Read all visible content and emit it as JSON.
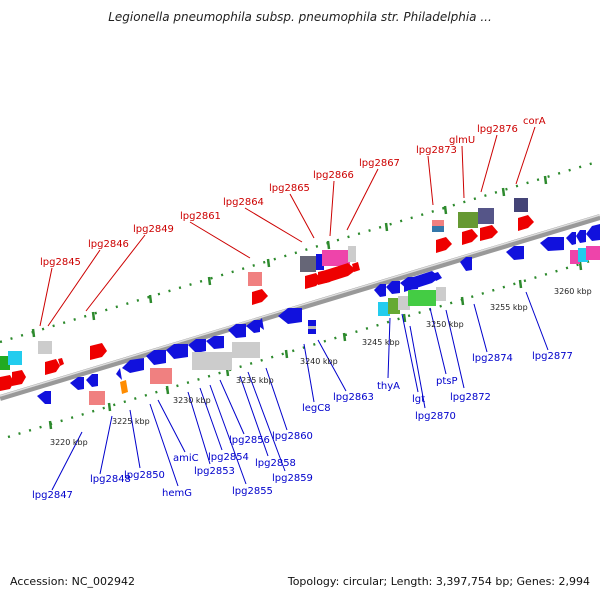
{
  "title": "Legionella pneumophila subsp. pneumophila str. Philadelphia ...",
  "footer": {
    "accession": "Accession: NC_002942",
    "topology": "Topology: circular; Length: 3,397,754 bp; Genes: 2,994"
  },
  "colors": {
    "forward_gene": "#ee0000",
    "reverse_gene": "#1111dd",
    "upper_label": "#cc0000",
    "lower_label": "#0000cc",
    "backbone": "#888888",
    "tick": "#2d8a2d"
  },
  "scale_labels": [
    "3220 kbp",
    "3225 kbp",
    "3230 kbp",
    "3235 kbp",
    "3240 kbp",
    "3245 kbp",
    "3250 kbp",
    "3255 kbp",
    "3260 kbp"
  ],
  "upper_gene_labels": [
    "lpg2845",
    "lpg2846",
    "lpg2849",
    "lpg2861",
    "lpg2864",
    "lpg2865",
    "lpg2866",
    "lpg2867",
    "lpg2873",
    "glmU",
    "lpg2876",
    "corA"
  ],
  "lower_gene_labels": [
    "lpg2847",
    "lpg2848",
    "lpg2850",
    "hemG",
    "amiC",
    "lpg2853",
    "lpg2854",
    "lpg2855",
    "lpg2856",
    "lpg2858",
    "lpg2859",
    "lpg2860",
    "legC8",
    "lpg2863",
    "thyA",
    "lgt",
    "lpg2870",
    "ptsP",
    "lpg2872",
    "lpg2874",
    "lpg2877"
  ]
}
